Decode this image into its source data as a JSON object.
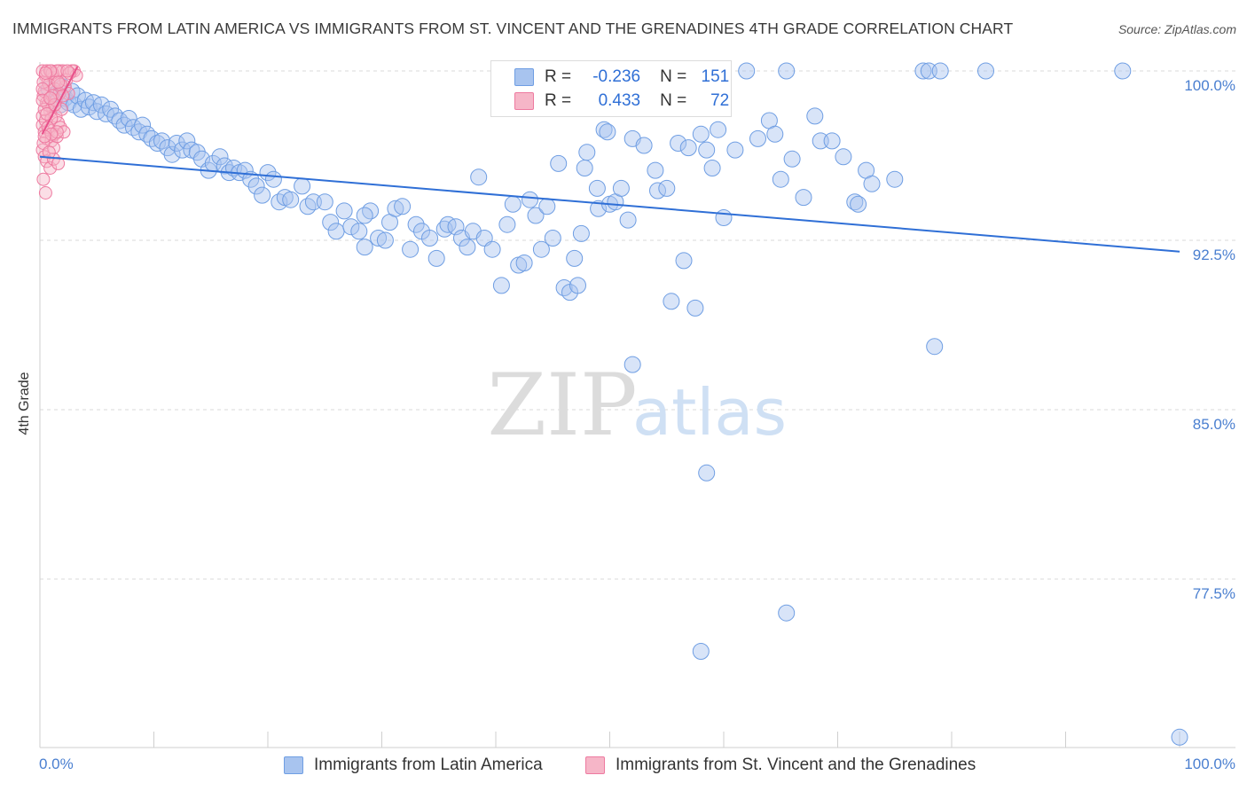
{
  "title": "IMMIGRANTS FROM LATIN AMERICA VS IMMIGRANTS FROM ST. VINCENT AND THE GRENADINES 4TH GRADE CORRELATION CHART",
  "source": "Source: ZipAtlas.com",
  "watermark": {
    "zip": "ZIP",
    "atlas": "atlas"
  },
  "legend": {
    "rows": [
      {
        "r_label": "R =",
        "r_value": "-0.236",
        "n_label": "N =",
        "n_value": "151",
        "color": "#a8c4ef"
      },
      {
        "r_label": "R =",
        "r_value": "0.433",
        "n_label": "N =",
        "n_value": "72",
        "color": "#f6b6c8"
      }
    ]
  },
  "bottom_legend": [
    {
      "label": "Immigrants from Latin America",
      "color": "#a8c4ef"
    },
    {
      "label": "Immigrants from St. Vincent and the Grenadines",
      "color": "#f6b6c8"
    }
  ],
  "chart_data": {
    "type": "scatter",
    "title": "IMMIGRANTS FROM LATIN AMERICA VS IMMIGRANTS FROM ST. VINCENT AND THE GRENADINES 4TH GRADE CORRELATION CHART",
    "xlabel": "",
    "ylabel": "4th Grade",
    "xlim": [
      0,
      100
    ],
    "ylim": [
      70.5,
      101
    ],
    "x_tick_labels": [
      "0.0%",
      "100.0%"
    ],
    "y_ticks": [
      100,
      92.5,
      85,
      77.5
    ],
    "y_tick_labels": [
      "100.0%",
      "92.5%",
      "85.0%",
      "77.5%"
    ],
    "grid": true,
    "legend_position": "top-center",
    "series": [
      {
        "name": "Immigrants from Latin America",
        "color": "#6f9ee3",
        "fill": "rgba(168,196,239,0.45)",
        "trend": {
          "x": [
            0,
            100
          ],
          "y": [
            96.2,
            92.0
          ]
        },
        "points": [
          [
            0.8,
            99.2
          ],
          [
            1.2,
            98.7
          ],
          [
            1.5,
            99.0
          ],
          [
            1.8,
            98.5
          ],
          [
            2.0,
            99.3
          ],
          [
            2.2,
            98.8
          ],
          [
            2.5,
            98.6
          ],
          [
            2.8,
            99.1
          ],
          [
            3.0,
            98.5
          ],
          [
            3.3,
            98.9
          ],
          [
            3.6,
            98.3
          ],
          [
            4.0,
            98.7
          ],
          [
            4.3,
            98.4
          ],
          [
            4.7,
            98.6
          ],
          [
            5.0,
            98.2
          ],
          [
            5.4,
            98.5
          ],
          [
            5.8,
            98.1
          ],
          [
            6.2,
            98.3
          ],
          [
            6.6,
            98.0
          ],
          [
            7.0,
            97.8
          ],
          [
            7.4,
            97.6
          ],
          [
            7.8,
            97.9
          ],
          [
            8.2,
            97.5
          ],
          [
            8.7,
            97.3
          ],
          [
            9.0,
            97.6
          ],
          [
            9.4,
            97.2
          ],
          [
            9.8,
            97.0
          ],
          [
            10.3,
            96.8
          ],
          [
            10.7,
            96.9
          ],
          [
            11.2,
            96.6
          ],
          [
            11.6,
            96.3
          ],
          [
            12.0,
            96.8
          ],
          [
            12.5,
            96.5
          ],
          [
            12.9,
            96.9
          ],
          [
            13.3,
            96.5
          ],
          [
            13.8,
            96.4
          ],
          [
            14.2,
            96.1
          ],
          [
            14.8,
            95.6
          ],
          [
            15.2,
            95.9
          ],
          [
            15.8,
            96.2
          ],
          [
            16.2,
            95.8
          ],
          [
            16.6,
            95.5
          ],
          [
            17.0,
            95.7
          ],
          [
            17.5,
            95.5
          ],
          [
            18.0,
            95.6
          ],
          [
            18.5,
            95.2
          ],
          [
            19.0,
            94.9
          ],
          [
            19.5,
            94.5
          ],
          [
            20.0,
            95.5
          ],
          [
            20.5,
            95.2
          ],
          [
            21.0,
            94.2
          ],
          [
            21.5,
            94.4
          ],
          [
            22.0,
            94.3
          ],
          [
            23.0,
            94.9
          ],
          [
            23.5,
            94.0
          ],
          [
            24.0,
            94.2
          ],
          [
            25.0,
            94.2
          ],
          [
            25.5,
            93.3
          ],
          [
            26.0,
            92.9
          ],
          [
            26.7,
            93.8
          ],
          [
            27.3,
            93.1
          ],
          [
            28.0,
            92.9
          ],
          [
            28.5,
            92.2
          ],
          [
            29.0,
            93.8
          ],
          [
            29.7,
            92.6
          ],
          [
            30.3,
            92.5
          ],
          [
            30.7,
            93.3
          ],
          [
            31.2,
            93.9
          ],
          [
            31.8,
            94.0
          ],
          [
            32.5,
            92.1
          ],
          [
            33.0,
            93.2
          ],
          [
            33.5,
            92.9
          ],
          [
            34.2,
            92.6
          ],
          [
            34.8,
            91.7
          ],
          [
            35.5,
            93.0
          ],
          [
            35.8,
            93.2
          ],
          [
            36.5,
            93.1
          ],
          [
            37.0,
            92.6
          ],
          [
            37.5,
            92.2
          ],
          [
            38.0,
            92.9
          ],
          [
            38.5,
            95.3
          ],
          [
            39.0,
            92.6
          ],
          [
            39.7,
            92.1
          ],
          [
            40.5,
            90.5
          ],
          [
            41.0,
            93.2
          ],
          [
            41.5,
            94.1
          ],
          [
            42.0,
            91.4
          ],
          [
            42.5,
            91.5
          ],
          [
            43.0,
            94.3
          ],
          [
            43.5,
            93.6
          ],
          [
            44.0,
            92.1
          ],
          [
            44.5,
            94.0
          ],
          [
            45.0,
            92.6
          ],
          [
            45.5,
            95.9
          ],
          [
            46.0,
            90.4
          ],
          [
            46.5,
            90.2
          ],
          [
            46.9,
            91.7
          ],
          [
            47.2,
            90.5
          ],
          [
            47.5,
            92.8
          ],
          [
            47.8,
            95.7
          ],
          [
            48.0,
            96.4
          ],
          [
            48.9,
            94.8
          ],
          [
            49.0,
            93.9
          ],
          [
            49.5,
            97.4
          ],
          [
            50.0,
            94.1
          ],
          [
            50.5,
            94.2
          ],
          [
            51.0,
            94.8
          ],
          [
            51.6,
            93.4
          ],
          [
            52.0,
            97.0
          ],
          [
            53.0,
            96.7
          ],
          [
            54.0,
            95.6
          ],
          [
            54.2,
            94.7
          ],
          [
            55.0,
            94.8
          ],
          [
            55.4,
            89.8
          ],
          [
            56.0,
            96.8
          ],
          [
            56.5,
            91.6
          ],
          [
            56.9,
            96.6
          ],
          [
            57.5,
            89.5
          ],
          [
            58.0,
            97.2
          ],
          [
            58.5,
            96.5
          ],
          [
            59.0,
            95.7
          ],
          [
            59.5,
            97.4
          ],
          [
            60.0,
            93.5
          ],
          [
            61.0,
            96.5
          ],
          [
            62.0,
            100.0
          ],
          [
            63.0,
            97.0
          ],
          [
            64.0,
            97.8
          ],
          [
            64.5,
            97.2
          ],
          [
            65.0,
            95.2
          ],
          [
            65.5,
            100.0
          ],
          [
            66.0,
            96.1
          ],
          [
            67.0,
            94.4
          ],
          [
            68.0,
            98.0
          ],
          [
            68.5,
            96.9
          ],
          [
            69.5,
            96.9
          ],
          [
            70.5,
            96.2
          ],
          [
            71.5,
            94.2
          ],
          [
            71.8,
            94.1
          ],
          [
            72.5,
            95.6
          ],
          [
            73.0,
            95.0
          ],
          [
            75.0,
            95.2
          ],
          [
            77.5,
            100.0
          ],
          [
            78.0,
            100.0
          ],
          [
            78.5,
            87.8
          ],
          [
            79.0,
            100.0
          ],
          [
            83.0,
            100.0
          ],
          [
            95.0,
            100.0
          ],
          [
            52.0,
            87.0
          ],
          [
            58.5,
            82.2
          ],
          [
            65.5,
            76.0
          ],
          [
            58.0,
            74.3
          ],
          [
            100.0,
            70.5
          ],
          [
            55.5,
            98.6
          ],
          [
            49.8,
            97.3
          ],
          [
            28.5,
            93.6
          ]
        ]
      },
      {
        "name": "Immigrants from St. Vincent and the Grenadines",
        "color": "#ee7aa0",
        "fill": "rgba(246,182,200,0.45)",
        "trend": {
          "x": [
            0.2,
            3.3
          ],
          "y": [
            97.2,
            100.2
          ]
        },
        "points": [
          [
            0.2,
            100.0
          ],
          [
            0.5,
            99.8
          ],
          [
            0.7,
            99.5
          ],
          [
            1.0,
            100.0
          ],
          [
            1.2,
            99.7
          ],
          [
            1.5,
            99.6
          ],
          [
            1.7,
            100.0
          ],
          [
            2.0,
            100.0
          ],
          [
            2.2,
            99.3
          ],
          [
            2.5,
            99.0
          ],
          [
            2.8,
            100.0
          ],
          [
            3.0,
            100.0
          ],
          [
            3.2,
            99.8
          ],
          [
            0.3,
            98.9
          ],
          [
            0.6,
            98.6
          ],
          [
            0.9,
            98.2
          ],
          [
            1.1,
            98.4
          ],
          [
            1.4,
            98.0
          ],
          [
            1.6,
            97.7
          ],
          [
            1.9,
            98.3
          ],
          [
            0.2,
            97.6
          ],
          [
            0.4,
            97.3
          ],
          [
            0.6,
            97.0
          ],
          [
            0.8,
            97.4
          ],
          [
            1.0,
            96.9
          ],
          [
            1.3,
            97.2
          ],
          [
            1.5,
            97.1
          ],
          [
            1.8,
            97.5
          ],
          [
            2.1,
            97.3
          ],
          [
            0.2,
            96.5
          ],
          [
            0.4,
            96.2
          ],
          [
            0.6,
            96.0
          ],
          [
            0.9,
            95.7
          ],
          [
            1.2,
            96.1
          ],
          [
            1.6,
            95.9
          ],
          [
            0.3,
            95.2
          ],
          [
            0.5,
            94.6
          ],
          [
            0.4,
            99.1
          ],
          [
            0.8,
            99.4
          ],
          [
            1.3,
            99.2
          ],
          [
            0.2,
            98.0
          ],
          [
            0.5,
            97.8
          ],
          [
            0.7,
            98.5
          ],
          [
            1.0,
            97.9
          ],
          [
            1.4,
            98.7
          ],
          [
            1.7,
            99.0
          ],
          [
            2.3,
            99.6
          ],
          [
            2.6,
            99.9
          ],
          [
            0.3,
            99.5
          ],
          [
            0.6,
            100.0
          ],
          [
            1.1,
            99.9
          ],
          [
            1.5,
            100.0
          ],
          [
            0.9,
            100.0
          ],
          [
            0.2,
            99.2
          ],
          [
            0.4,
            98.3
          ],
          [
            0.7,
            97.5
          ],
          [
            1.2,
            96.6
          ],
          [
            1.5,
            97.3
          ],
          [
            0.3,
            96.8
          ],
          [
            0.8,
            96.4
          ],
          [
            1.1,
            98.9
          ],
          [
            1.8,
            99.4
          ],
          [
            2.4,
            100.0
          ],
          [
            0.5,
            99.9
          ],
          [
            0.2,
            98.7
          ],
          [
            0.6,
            98.1
          ],
          [
            1.0,
            97.2
          ],
          [
            1.3,
            98.5
          ],
          [
            0.4,
            97.1
          ],
          [
            0.9,
            98.8
          ],
          [
            1.6,
            99.5
          ],
          [
            2.0,
            98.9
          ]
        ]
      }
    ]
  }
}
